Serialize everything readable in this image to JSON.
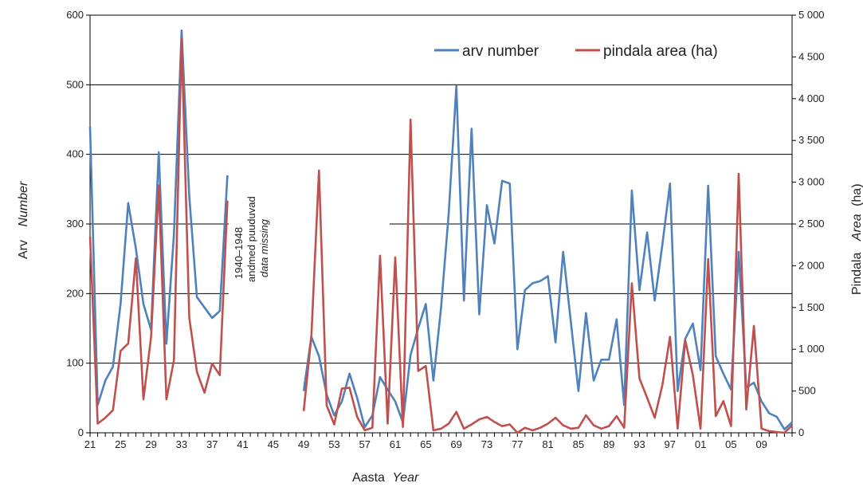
{
  "chart_data": {
    "type": "line",
    "xlabel_main": "Aasta",
    "xlabel_italic": "Year",
    "ylabel_left_main": "Arv",
    "ylabel_left_italic": "Number",
    "ylabel_right_main": "Pindala",
    "ylabel_right_italic": "Area",
    "ylabel_right_suffix": "(ha)",
    "ylim_left": [
      0,
      600
    ],
    "ylim_right": [
      0,
      5000
    ],
    "xlim": [
      1921,
      2013
    ],
    "yticks_left": [
      "0",
      "100",
      "200",
      "300",
      "400",
      "500",
      "600"
    ],
    "yticks_right": [
      "0",
      "500",
      "1 000",
      "1 500",
      "2 000",
      "2 500",
      "3 000",
      "3 500",
      "4 000",
      "4 500",
      "5 000"
    ],
    "x_tick_years": [
      1921,
      1925,
      1929,
      1933,
      1937,
      1941,
      1945,
      1949,
      1953,
      1957,
      1961,
      1965,
      1969,
      1973,
      1977,
      1981,
      1985,
      1989,
      1993,
      1997,
      2001,
      2005,
      2009
    ],
    "x_tick_labels": [
      "21",
      "25",
      "29",
      "33",
      "37",
      "41",
      "45",
      "49",
      "53",
      "57",
      "61",
      "65",
      "69",
      "73",
      "77",
      "81",
      "85",
      "89",
      "93",
      "97",
      "01",
      "05",
      "09"
    ],
    "grid_horizontal": true,
    "legend_position": "top-right",
    "annotation": {
      "line1": "1940–1948",
      "line2": "andmed puuduvad",
      "line3": "data missing"
    },
    "series": [
      {
        "name": "arv number",
        "axis": "left",
        "color": "#4F81BD",
        "segments": [
          [
            [
              1921,
              440
            ],
            [
              1922,
              40
            ],
            [
              1923,
              75
            ],
            [
              1924,
              95
            ],
            [
              1925,
              185
            ],
            [
              1926,
              330
            ],
            [
              1927,
              265
            ],
            [
              1928,
              185
            ],
            [
              1929,
              148
            ],
            [
              1930,
              403
            ],
            [
              1931,
              128
            ],
            [
              1932,
              285
            ],
            [
              1933,
              578
            ],
            [
              1934,
              340
            ],
            [
              1935,
              195
            ],
            [
              1936,
              180
            ],
            [
              1937,
              165
            ],
            [
              1938,
              175
            ],
            [
              1939,
              370
            ]
          ],
          [
            [
              1949,
              60
            ],
            [
              1950,
              138
            ],
            [
              1951,
              110
            ],
            [
              1952,
              55
            ],
            [
              1953,
              25
            ],
            [
              1954,
              45
            ],
            [
              1955,
              85
            ],
            [
              1956,
              50
            ],
            [
              1957,
              8
            ],
            [
              1958,
              25
            ],
            [
              1959,
              80
            ],
            [
              1960,
              62
            ],
            [
              1961,
              45
            ],
            [
              1962,
              15
            ],
            [
              1963,
              112
            ],
            [
              1964,
              150
            ],
            [
              1965,
              185
            ],
            [
              1966,
              75
            ],
            [
              1967,
              180
            ],
            [
              1968,
              315
            ],
            [
              1969,
              498
            ],
            [
              1970,
              190
            ],
            [
              1971,
              437
            ],
            [
              1972,
              170
            ],
            [
              1973,
              327
            ],
            [
              1974,
              272
            ],
            [
              1975,
              362
            ],
            [
              1976,
              358
            ],
            [
              1977,
              120
            ],
            [
              1978,
              205
            ],
            [
              1979,
              215
            ],
            [
              1980,
              218
            ],
            [
              1981,
              225
            ],
            [
              1982,
              130
            ],
            [
              1983,
              260
            ],
            [
              1984,
              160
            ],
            [
              1985,
              60
            ],
            [
              1986,
              172
            ],
            [
              1987,
              75
            ],
            [
              1988,
              105
            ],
            [
              1989,
              105
            ],
            [
              1990,
              163
            ],
            [
              1991,
              40
            ],
            [
              1992,
              348
            ],
            [
              1993,
              205
            ],
            [
              1994,
              288
            ],
            [
              1995,
              190
            ],
            [
              1996,
              270
            ],
            [
              1997,
              358
            ],
            [
              1998,
              60
            ],
            [
              1999,
              135
            ],
            [
              2000,
              157
            ],
            [
              2001,
              90
            ],
            [
              2002,
              355
            ],
            [
              2003,
              110
            ],
            [
              2004,
              85
            ],
            [
              2005,
              62
            ],
            [
              2006,
              260
            ],
            [
              2007,
              65
            ],
            [
              2008,
              72
            ],
            [
              2009,
              45
            ],
            [
              2010,
              28
            ],
            [
              2011,
              23
            ],
            [
              2012,
              5
            ],
            [
              2013,
              15
            ]
          ]
        ]
      },
      {
        "name": "pindala area (ha)",
        "axis": "right",
        "color": "#C0504D",
        "segments": [
          [
            [
              1921,
              2350
            ],
            [
              1922,
              110
            ],
            [
              1923,
              180
            ],
            [
              1924,
              270
            ],
            [
              1925,
              980
            ],
            [
              1926,
              1070
            ],
            [
              1927,
              2090
            ],
            [
              1928,
              400
            ],
            [
              1929,
              1150
            ],
            [
              1930,
              2960
            ],
            [
              1931,
              400
            ],
            [
              1932,
              870
            ],
            [
              1933,
              4720
            ],
            [
              1934,
              1380
            ],
            [
              1935,
              730
            ],
            [
              1936,
              480
            ],
            [
              1937,
              830
            ],
            [
              1938,
              690
            ],
            [
              1939,
              2780
            ]
          ],
          [
            [
              1949,
              260
            ],
            [
              1950,
              1150
            ],
            [
              1951,
              3140
            ],
            [
              1952,
              330
            ],
            [
              1953,
              100
            ],
            [
              1954,
              530
            ],
            [
              1955,
              540
            ],
            [
              1956,
              190
            ],
            [
              1957,
              30
            ],
            [
              1958,
              60
            ],
            [
              1959,
              2120
            ],
            [
              1960,
              110
            ],
            [
              1961,
              2100
            ],
            [
              1962,
              70
            ],
            [
              1963,
              3750
            ],
            [
              1964,
              740
            ],
            [
              1965,
              800
            ],
            [
              1966,
              30
            ],
            [
              1967,
              50
            ],
            [
              1968,
              110
            ],
            [
              1969,
              250
            ],
            [
              1970,
              50
            ],
            [
              1971,
              100
            ],
            [
              1972,
              160
            ],
            [
              1973,
              190
            ],
            [
              1974,
              130
            ],
            [
              1975,
              80
            ],
            [
              1976,
              100
            ],
            [
              1977,
              0
            ],
            [
              1978,
              60
            ],
            [
              1979,
              30
            ],
            [
              1980,
              60
            ],
            [
              1981,
              110
            ],
            [
              1982,
              180
            ],
            [
              1983,
              90
            ],
            [
              1984,
              50
            ],
            [
              1985,
              60
            ],
            [
              1986,
              210
            ],
            [
              1987,
              90
            ],
            [
              1988,
              50
            ],
            [
              1989,
              80
            ],
            [
              1990,
              200
            ],
            [
              1991,
              60
            ],
            [
              1992,
              1790
            ],
            [
              1993,
              650
            ],
            [
              1994,
              420
            ],
            [
              1995,
              180
            ],
            [
              1996,
              570
            ],
            [
              1997,
              1150
            ],
            [
              1998,
              50
            ],
            [
              1999,
              1110
            ],
            [
              2000,
              690
            ],
            [
              2001,
              50
            ],
            [
              2002,
              2080
            ],
            [
              2003,
              200
            ],
            [
              2004,
              380
            ],
            [
              2005,
              80
            ],
            [
              2006,
              3100
            ],
            [
              2007,
              280
            ],
            [
              2008,
              1280
            ],
            [
              2009,
              50
            ],
            [
              2010,
              20
            ],
            [
              2011,
              10
            ],
            [
              2012,
              0
            ],
            [
              2013,
              90
            ]
          ]
        ]
      }
    ]
  }
}
